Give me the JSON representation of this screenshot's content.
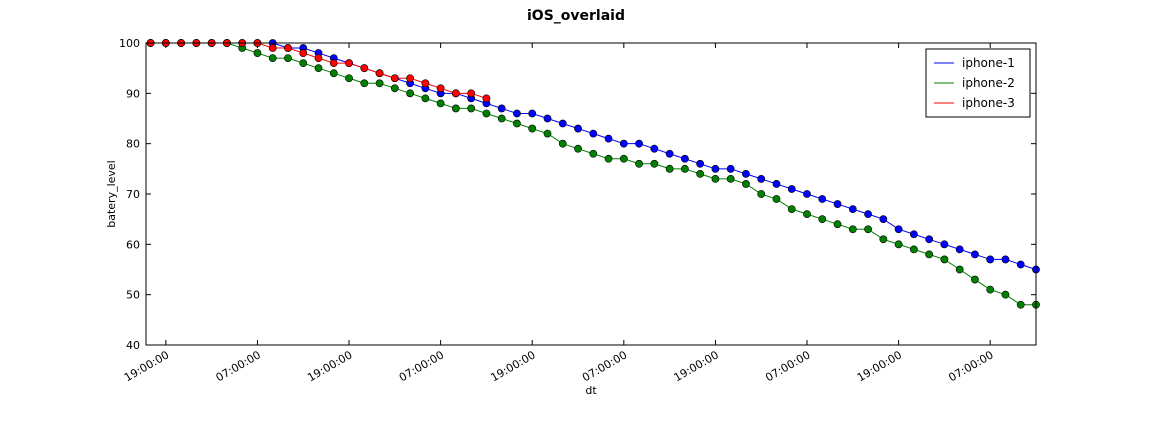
{
  "chart_data": {
    "type": "line",
    "title": "iOS_overlaid",
    "xlabel": "dt",
    "ylabel": "batery_level",
    "x": [
      17,
      19,
      21,
      23,
      25,
      27,
      29,
      31,
      33,
      35,
      37,
      39,
      41,
      43,
      45,
      47,
      49,
      51,
      53,
      55,
      57,
      59,
      61,
      63,
      65,
      67,
      69,
      71,
      73,
      75,
      77,
      79,
      81,
      83,
      85,
      87,
      89,
      91,
      93,
      95,
      97,
      99,
      101,
      103,
      105,
      107,
      109,
      111,
      113,
      115,
      117,
      119,
      121,
      123,
      125,
      127,
      129,
      131,
      133
    ],
    "series": [
      {
        "name": "iphone-1",
        "color": "#0000ff",
        "values": [
          100,
          100,
          100,
          100,
          100,
          100,
          100,
          100,
          100,
          99,
          99,
          98,
          97,
          96,
          95,
          94,
          93,
          92,
          91,
          90,
          90,
          89,
          88,
          87,
          86,
          86,
          85,
          84,
          83,
          82,
          81,
          80,
          80,
          79,
          78,
          77,
          76,
          75,
          75,
          74,
          73,
          72,
          71,
          70,
          69,
          68,
          67,
          66,
          65,
          63,
          62,
          61,
          60,
          59,
          58,
          57,
          57,
          56,
          55
        ]
      },
      {
        "name": "iphone-2",
        "color": "#008000",
        "values": [
          100,
          100,
          100,
          100,
          100,
          100,
          99,
          98,
          97,
          97,
          96,
          95,
          94,
          93,
          92,
          92,
          91,
          90,
          89,
          88,
          87,
          87,
          86,
          85,
          84,
          83,
          82,
          80,
          79,
          78,
          77,
          77,
          76,
          76,
          75,
          75,
          74,
          73,
          73,
          72,
          70,
          69,
          67,
          66,
          65,
          64,
          63,
          63,
          61,
          60,
          59,
          58,
          57,
          55,
          53,
          51,
          50,
          48,
          48
        ]
      },
      {
        "name": "iphone-3",
        "color": "#ff0000",
        "values": [
          100,
          100,
          100,
          100,
          100,
          100,
          100,
          100,
          99,
          99,
          98,
          97,
          96,
          96,
          95,
          94,
          93,
          93,
          92,
          91,
          90,
          90,
          89,
          null,
          null,
          null,
          null,
          null,
          null,
          null,
          null,
          null,
          null,
          null,
          null,
          null,
          null,
          null,
          null,
          null,
          null,
          null,
          null,
          null,
          null,
          null,
          null,
          null,
          null,
          null,
          null,
          null,
          null,
          null,
          null,
          null,
          null,
          null,
          null
        ]
      }
    ],
    "xlim": [
      16.4,
      133
    ],
    "xticks": [
      {
        "value": 19,
        "label": "19:00:00"
      },
      {
        "value": 31,
        "label": "07:00:00"
      },
      {
        "value": 43,
        "label": "19:00:00"
      },
      {
        "value": 55,
        "label": "07:00:00"
      },
      {
        "value": 67,
        "label": "19:00:00"
      },
      {
        "value": 79,
        "label": "07:00:00"
      },
      {
        "value": 91,
        "label": "19:00:00"
      },
      {
        "value": 103,
        "label": "07:00:00"
      },
      {
        "value": 115,
        "label": "19:00:00"
      },
      {
        "value": 127,
        "label": "07:00:00"
      }
    ],
    "ylim": [
      40,
      100
    ],
    "yticks": [
      40,
      50,
      60,
      70,
      80,
      90,
      100
    ],
    "legend": "upper right"
  }
}
